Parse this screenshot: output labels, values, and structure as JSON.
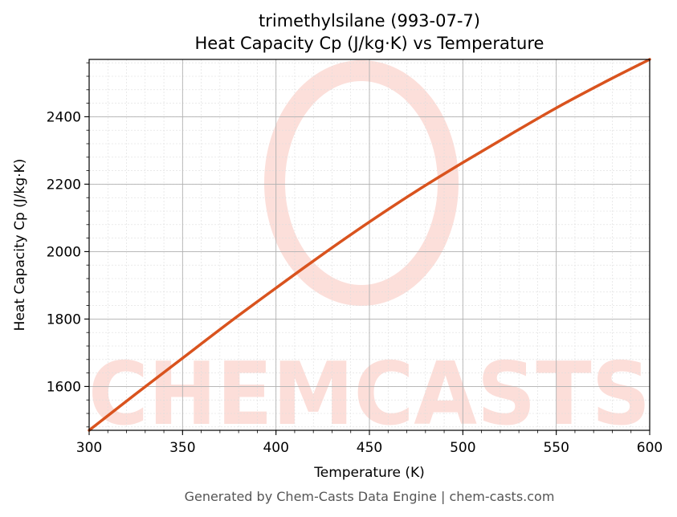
{
  "chart_data": {
    "type": "line",
    "title": "trimethylsilane (993-07-7)",
    "subtitle": "Heat Capacity Cp (J/kg·K) vs Temperature",
    "xlabel": "Temperature (K)",
    "ylabel": "Heat Capacity Cp (J/kg·K)",
    "xlim": [
      300,
      600
    ],
    "ylim": [
      1470,
      2570
    ],
    "xticks": [
      300,
      350,
      400,
      450,
      500,
      550,
      600
    ],
    "yticks": [
      1600,
      1800,
      2000,
      2200,
      2400
    ],
    "grid": true,
    "series": [
      {
        "color": "#d9531e",
        "x": [
          300,
          325,
          350,
          375,
          400,
          425,
          450,
          475,
          500,
          525,
          550,
          575,
          600
        ],
        "y": [
          1470,
          1578,
          1684,
          1790,
          1892,
          1992,
          2088,
          2179,
          2264,
          2346,
          2426,
          2500,
          2570
        ]
      }
    ]
  },
  "watermark": {
    "text": "CHEMCASTS"
  },
  "footer": "Generated by Chem-Casts Data Engine | chem-casts.com"
}
